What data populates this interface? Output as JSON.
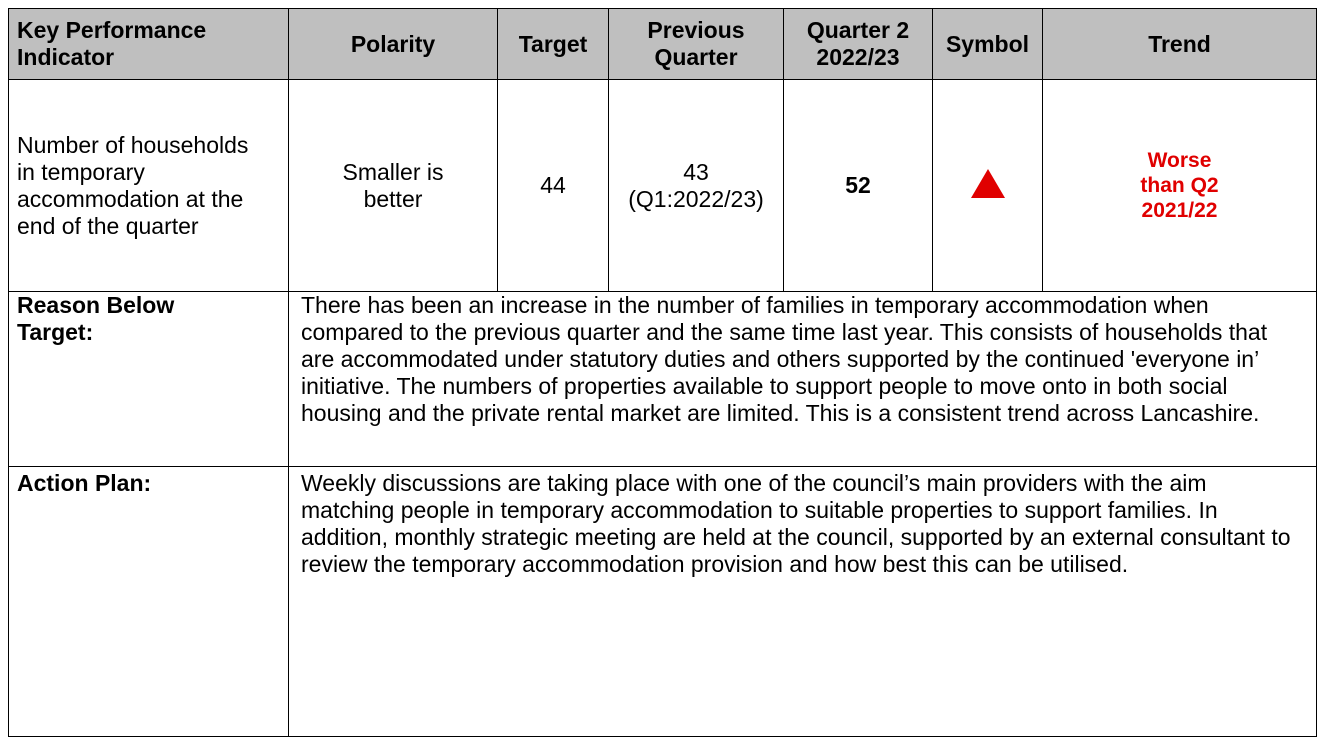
{
  "table": {
    "header": [
      "Key Performance Indicator",
      "Polarity",
      "Target",
      "Previous Quarter",
      "Quarter 2 2022/23",
      "Symbol",
      "Trend"
    ],
    "kpi_row": {
      "indicator": "Number of households in temporary accommodation at the end of the quarter",
      "polarity": "Smaller is better",
      "target": "44",
      "previous_value": "43",
      "previous_period": "(Q1:2022/23)",
      "current": "52",
      "trend": "Worse than Q2 2021/22"
    },
    "reason": {
      "label": "Reason Below Target:",
      "text": "There has been an increase in the number of families in temporary accommodation when compared to the previous quarter and the same time last year. This consists of households that are accommodated under statutory duties and others supported by the continued 'everyone in’ initiative. The numbers of properties available to support people to move onto in both social housing and the private rental market are limited. This is a consistent trend across Lancashire."
    },
    "action": {
      "label": "Action Plan:",
      "text": "Weekly discussions are taking place with one of the council’s main providers with the aim matching people in temporary accommodation to suitable properties to support families. In addition, monthly strategic meeting are held at the council, supported by an external consultant to review the temporary accommodation provision and how best this can be utilised."
    }
  }
}
